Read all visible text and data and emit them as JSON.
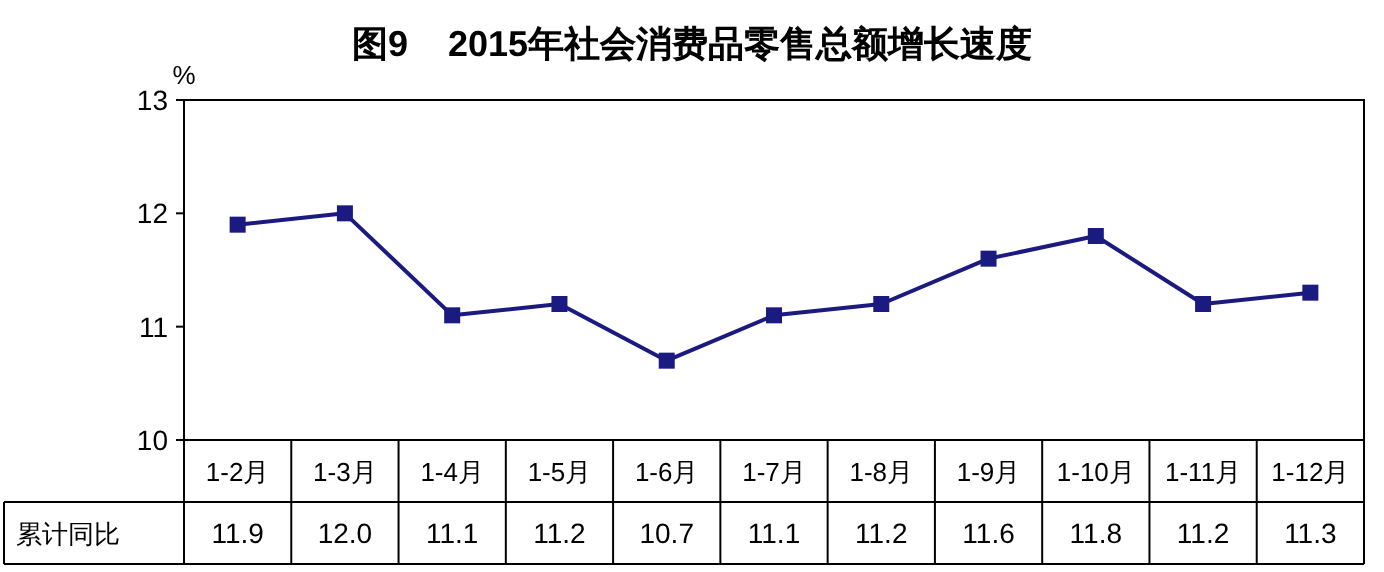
{
  "chart_data": {
    "type": "line",
    "title": "图9    2015年社会消费品零售总额增长速度",
    "ylabel": "%",
    "categories": [
      "1-2月",
      "1-3月",
      "1-4月",
      "1-5月",
      "1-6月",
      "1-7月",
      "1-8月",
      "1-9月",
      "1-10月",
      "1-11月",
      "1-12月"
    ],
    "series": [
      {
        "name": "累计同比",
        "color": "#1a1a80",
        "values": [
          11.9,
          12.0,
          11.1,
          11.2,
          10.7,
          11.1,
          11.2,
          11.6,
          11.8,
          11.2,
          11.3
        ],
        "value_labels": [
          "11.9",
          "12.0",
          "11.1",
          "11.2",
          "10.7",
          "11.1",
          "11.2",
          "11.6",
          "11.8",
          "11.2",
          "11.3"
        ]
      }
    ],
    "ylim": [
      10,
      13
    ],
    "yticks": [
      10,
      11,
      12,
      13
    ],
    "marker": "square",
    "line_style": "solid",
    "grid": false
  }
}
